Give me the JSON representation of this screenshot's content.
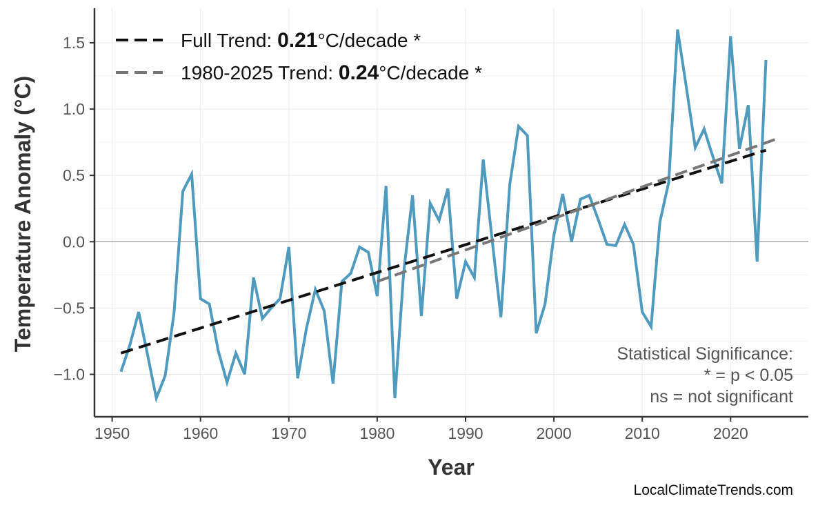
{
  "chart_data": {
    "type": "line",
    "xlabel": "Year",
    "ylabel": "Temperature Anomaly (°C)",
    "xlim": [
      1948,
      2028.8
    ],
    "ylim": [
      -1.32,
      1.76
    ],
    "xticks": [
      1950,
      1960,
      1970,
      1980,
      1990,
      2000,
      2010,
      2020
    ],
    "yticks": [
      -1.0,
      -0.5,
      0.0,
      0.5,
      1.0,
      1.5
    ],
    "ytick_labels": [
      "−1.0",
      "−0.5",
      "0.0",
      "0.5",
      "1.0",
      "1.5"
    ],
    "grid": true,
    "legend_placement": "top-left",
    "colors": {
      "series": "#4f9bbf",
      "full_trend": "#111111",
      "recent_trend": "#777777",
      "zero_line": "#aaaaaa"
    },
    "series": [
      {
        "x": [
          1951,
          1952,
          1953,
          1954,
          1955,
          1956,
          1957,
          1958,
          1959,
          1960,
          1961,
          1962,
          1963,
          1964,
          1965,
          1966,
          1967,
          1968,
          1969,
          1970,
          1971,
          1972,
          1973,
          1974,
          1975,
          1976,
          1977,
          1978,
          1979,
          1980,
          1981,
          1982,
          1983,
          1984,
          1985,
          1986,
          1987,
          1988,
          1989,
          1990,
          1991,
          1992,
          1993,
          1994,
          1995,
          1996,
          1997,
          1998,
          1999,
          2000,
          2001,
          2002,
          2003,
          2004,
          2005,
          2006,
          2007,
          2008,
          2009,
          2010,
          2011,
          2012,
          2013,
          2014,
          2015,
          2016,
          2017,
          2018,
          2019,
          2020,
          2021,
          2022,
          2023,
          2024
        ],
        "y": [
          -0.98,
          -0.78,
          -0.53,
          -0.85,
          -1.18,
          -1.01,
          -0.54,
          0.38,
          0.51,
          -0.43,
          -0.47,
          -0.82,
          -1.06,
          -0.84,
          -1.0,
          -0.27,
          -0.58,
          -0.5,
          -0.43,
          -0.04,
          -1.03,
          -0.65,
          -0.36,
          -0.52,
          -1.07,
          -0.3,
          -0.24,
          -0.04,
          -0.08,
          -0.41,
          0.42,
          -1.18,
          -0.23,
          0.35,
          -0.56,
          0.29,
          0.16,
          0.4,
          -0.43,
          -0.15,
          -0.27,
          0.62,
          0.02,
          -0.57,
          0.43,
          0.87,
          0.8,
          -0.69,
          -0.47,
          0.05,
          0.36,
          0.0,
          0.32,
          0.35,
          0.17,
          -0.02,
          -0.03,
          0.13,
          -0.02,
          -0.53,
          -0.64,
          0.15,
          0.45,
          1.6,
          1.16,
          0.71,
          0.85,
          0.64,
          0.44,
          1.55,
          0.7,
          1.03,
          -0.15,
          1.37
        ]
      }
    ],
    "trends": [
      {
        "x": [
          1951,
          2024
        ],
        "y": [
          -0.84,
          0.69
        ],
        "legend_prefix": "Full Trend: ",
        "value": "0.21",
        "suffix": "°C/decade *"
      },
      {
        "x": [
          1980,
          2025
        ],
        "y": [
          -0.3,
          0.77
        ],
        "legend_prefix": "1980-2025 Trend: ",
        "value": "0.24",
        "suffix": "°C/decade *"
      }
    ],
    "annotation": [
      "Statistical Significance:",
      "* = p < 0.05",
      "ns = not significant"
    ],
    "credit": "LocalClimateTrends.com"
  }
}
